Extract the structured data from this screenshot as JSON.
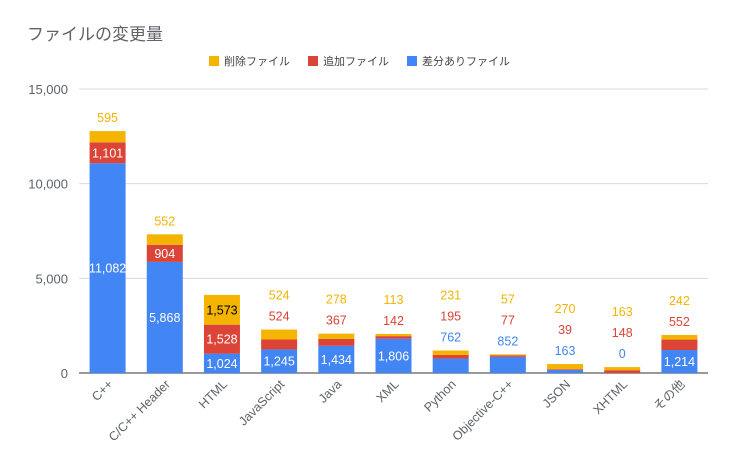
{
  "chart_data": {
    "type": "bar",
    "stacked": true,
    "title": "ファイルの変更量",
    "xlabel": "",
    "ylabel": "",
    "ylim": [
      0,
      15000
    ],
    "yticks": [
      "0",
      "5,000",
      "10,000",
      "15,000"
    ],
    "ytick_values": [
      0,
      5000,
      10000,
      15000
    ],
    "grid": true,
    "legend_position": "top",
    "categories": [
      "C++",
      "C/C++ Header",
      "HTML",
      "JavaScript",
      "Java",
      "XML",
      "Python",
      "Objective-C++",
      "JSON",
      "XHTML",
      "その他"
    ],
    "series": [
      {
        "name": "差分ありファイル",
        "color": "#4285f4",
        "values": [
          11082,
          5868,
          1024,
          1245,
          1434,
          1806,
          762,
          852,
          163,
          0,
          1214
        ],
        "labels": [
          "11,082",
          "5,868",
          "1,024",
          "1,245",
          "1,434",
          "1,806",
          "762",
          "852",
          "163",
          "0",
          "1,214"
        ]
      },
      {
        "name": "追加ファイル",
        "color": "#db4437",
        "values": [
          1101,
          904,
          1528,
          524,
          367,
          142,
          195,
          77,
          39,
          148,
          552
        ],
        "labels": [
          "1,101",
          "904",
          "1,528",
          "524",
          "367",
          "142",
          "195",
          "77",
          "39",
          "148",
          "552"
        ]
      },
      {
        "name": "削除ファイル",
        "color": "#f4b400",
        "values": [
          595,
          552,
          1573,
          524,
          278,
          113,
          231,
          57,
          270,
          163,
          242
        ],
        "labels": [
          "595",
          "552",
          "1,573",
          "524",
          "278",
          "113",
          "231",
          "57",
          "270",
          "163",
          "242"
        ]
      }
    ],
    "legend_order": [
      "削除ファイル",
      "追加ファイル",
      "差分ありファイル"
    ]
  }
}
